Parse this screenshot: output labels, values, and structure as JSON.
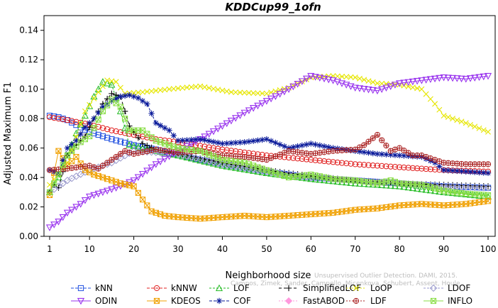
{
  "chart_data": {
    "type": "line",
    "title": "KDDCup99_1ofn",
    "xlabel": "Neighborhood size",
    "ylabel": "Adjusted Maximum F1",
    "xlim": [
      1,
      100
    ],
    "ylim": [
      0,
      0.15
    ],
    "x_ticks": [
      "1",
      "10",
      "20",
      "30",
      "40",
      "50",
      "60",
      "70",
      "80",
      "90",
      "100"
    ],
    "y_ticks": [
      "0.00",
      "0.02",
      "0.04",
      "0.06",
      "0.08",
      "0.10",
      "0.12",
      "0.14"
    ],
    "watermark": [
      "Unsupervised Outlier Detection. DAMI, 2015.",
      "Campos, Zimek, Sander, Campello, Micenkova, Schubert, Assent, Houle"
    ],
    "series": [
      {
        "name": "kNN",
        "color": "#1f4fe0",
        "marker": "square",
        "dash": "4,2",
        "points": [
          [
            1,
            0.082
          ],
          [
            3,
            0.081
          ],
          [
            5,
            0.079
          ],
          [
            8,
            0.074
          ],
          [
            10,
            0.071
          ],
          [
            15,
            0.066
          ],
          [
            20,
            0.062
          ],
          [
            25,
            0.059
          ],
          [
            30,
            0.055
          ],
          [
            40,
            0.049
          ],
          [
            50,
            0.044
          ],
          [
            60,
            0.04
          ],
          [
            70,
            0.038
          ],
          [
            80,
            0.036
          ],
          [
            90,
            0.034
          ],
          [
            100,
            0.033
          ]
        ]
      },
      {
        "name": "kNNW",
        "color": "#e02020",
        "marker": "circle",
        "dash": "4,2",
        "points": [
          [
            1,
            0.081
          ],
          [
            3,
            0.08
          ],
          [
            5,
            0.079
          ],
          [
            10,
            0.076
          ],
          [
            15,
            0.072
          ],
          [
            20,
            0.069
          ],
          [
            25,
            0.066
          ],
          [
            30,
            0.064
          ],
          [
            40,
            0.059
          ],
          [
            50,
            0.055
          ],
          [
            60,
            0.052
          ],
          [
            70,
            0.049
          ],
          [
            80,
            0.047
          ],
          [
            90,
            0.045
          ],
          [
            100,
            0.044
          ]
        ]
      },
      {
        "name": "LOF",
        "color": "#22bb22",
        "marker": "triangle-up",
        "dash": "3,2",
        "points": [
          [
            1,
            0.03
          ],
          [
            3,
            0.04
          ],
          [
            5,
            0.055
          ],
          [
            7,
            0.07
          ],
          [
            9,
            0.082
          ],
          [
            11,
            0.095
          ],
          [
            13,
            0.105
          ],
          [
            15,
            0.103
          ],
          [
            17,
            0.085
          ],
          [
            19,
            0.062
          ],
          [
            22,
            0.06
          ],
          [
            25,
            0.058
          ],
          [
            30,
            0.055
          ],
          [
            40,
            0.048
          ],
          [
            50,
            0.043
          ],
          [
            60,
            0.039
          ],
          [
            70,
            0.036
          ],
          [
            80,
            0.034
          ],
          [
            90,
            0.03
          ],
          [
            100,
            0.027
          ]
        ]
      },
      {
        "name": "SimplifiedLOF",
        "color": "#000000",
        "marker": "plus",
        "dash": "4,3",
        "points": [
          [
            1,
            0.03
          ],
          [
            2,
            0.035
          ],
          [
            3,
            0.033
          ],
          [
            5,
            0.055
          ],
          [
            7,
            0.062
          ],
          [
            9,
            0.068
          ],
          [
            11,
            0.08
          ],
          [
            13,
            0.09
          ],
          [
            15,
            0.097
          ],
          [
            17,
            0.095
          ],
          [
            19,
            0.075
          ],
          [
            22,
            0.063
          ],
          [
            25,
            0.059
          ],
          [
            30,
            0.056
          ],
          [
            40,
            0.05
          ],
          [
            50,
            0.045
          ],
          [
            60,
            0.041
          ],
          [
            70,
            0.038
          ],
          [
            80,
            0.036
          ],
          [
            90,
            0.035
          ],
          [
            100,
            0.034
          ]
        ]
      },
      {
        "name": "LoOP",
        "color": "#e6e600",
        "marker": "x",
        "dash": "2,2",
        "points": [
          [
            1,
            0.035
          ],
          [
            5,
            0.05
          ],
          [
            9,
            0.085
          ],
          [
            12,
            0.098
          ],
          [
            14,
            0.106
          ],
          [
            16,
            0.105
          ],
          [
            18,
            0.097
          ],
          [
            22,
            0.098
          ],
          [
            28,
            0.1
          ],
          [
            35,
            0.102
          ],
          [
            42,
            0.098
          ],
          [
            50,
            0.097
          ],
          [
            55,
            0.101
          ],
          [
            60,
            0.108
          ],
          [
            65,
            0.109
          ],
          [
            70,
            0.108
          ],
          [
            75,
            0.104
          ],
          [
            80,
            0.103
          ],
          [
            85,
            0.1
          ],
          [
            88,
            0.09
          ],
          [
            90,
            0.082
          ],
          [
            95,
            0.077
          ],
          [
            100,
            0.071
          ]
        ]
      },
      {
        "name": "LDOF",
        "color": "#9999cc",
        "marker": "diamond",
        "dash": "3,2",
        "points": [
          [
            1,
            0.03
          ],
          [
            5,
            0.038
          ],
          [
            10,
            0.045
          ],
          [
            15,
            0.05
          ],
          [
            20,
            0.058
          ],
          [
            30,
            0.056
          ],
          [
            40,
            0.049
          ],
          [
            50,
            0.044
          ],
          [
            60,
            0.04
          ],
          [
            70,
            0.038
          ],
          [
            80,
            0.036
          ],
          [
            90,
            0.034
          ],
          [
            100,
            0.033
          ]
        ]
      },
      {
        "name": "ODIN",
        "color": "#9933ee",
        "marker": "triangle-down",
        "dash": "",
        "points": [
          [
            1,
            0.006
          ],
          [
            3,
            0.01
          ],
          [
            5,
            0.016
          ],
          [
            8,
            0.022
          ],
          [
            10,
            0.027
          ],
          [
            13,
            0.03
          ],
          [
            16,
            0.033
          ],
          [
            20,
            0.038
          ],
          [
            25,
            0.049
          ],
          [
            30,
            0.058
          ],
          [
            35,
            0.066
          ],
          [
            40,
            0.075
          ],
          [
            45,
            0.084
          ],
          [
            50,
            0.092
          ],
          [
            55,
            0.1
          ],
          [
            60,
            0.109
          ],
          [
            65,
            0.106
          ],
          [
            70,
            0.101
          ],
          [
            75,
            0.099
          ],
          [
            80,
            0.104
          ],
          [
            85,
            0.106
          ],
          [
            90,
            0.108
          ],
          [
            95,
            0.107
          ],
          [
            100,
            0.109
          ]
        ]
      },
      {
        "name": "KDEOS",
        "color": "#f0a000",
        "marker": "square-x",
        "dash": "",
        "points": [
          [
            1,
            0.028
          ],
          [
            3,
            0.058
          ],
          [
            5,
            0.048
          ],
          [
            7,
            0.054
          ],
          [
            9,
            0.045
          ],
          [
            11,
            0.042
          ],
          [
            14,
            0.039
          ],
          [
            17,
            0.036
          ],
          [
            20,
            0.034
          ],
          [
            22,
            0.025
          ],
          [
            24,
            0.017
          ],
          [
            27,
            0.014
          ],
          [
            30,
            0.013
          ],
          [
            35,
            0.012
          ],
          [
            40,
            0.013
          ],
          [
            45,
            0.014
          ],
          [
            50,
            0.013
          ],
          [
            55,
            0.014
          ],
          [
            60,
            0.015
          ],
          [
            65,
            0.016
          ],
          [
            70,
            0.018
          ],
          [
            75,
            0.019
          ],
          [
            80,
            0.021
          ],
          [
            85,
            0.022
          ],
          [
            90,
            0.021
          ],
          [
            95,
            0.022
          ],
          [
            100,
            0.024
          ]
        ]
      },
      {
        "name": "COF",
        "color": "#0a1a9a",
        "marker": "star",
        "dash": "4,2",
        "points": [
          [
            1,
            0.045
          ],
          [
            3,
            0.043
          ],
          [
            5,
            0.06
          ],
          [
            7,
            0.065
          ],
          [
            9,
            0.074
          ],
          [
            11,
            0.08
          ],
          [
            13,
            0.088
          ],
          [
            15,
            0.092
          ],
          [
            17,
            0.095
          ],
          [
            19,
            0.096
          ],
          [
            21,
            0.094
          ],
          [
            23,
            0.09
          ],
          [
            25,
            0.077
          ],
          [
            28,
            0.072
          ],
          [
            30,
            0.065
          ],
          [
            35,
            0.066
          ],
          [
            40,
            0.063
          ],
          [
            45,
            0.064
          ],
          [
            50,
            0.066
          ],
          [
            55,
            0.06
          ],
          [
            60,
            0.063
          ],
          [
            65,
            0.06
          ],
          [
            70,
            0.058
          ],
          [
            75,
            0.056
          ],
          [
            80,
            0.055
          ],
          [
            85,
            0.054
          ],
          [
            88,
            0.05
          ],
          [
            90,
            0.045
          ],
          [
            95,
            0.044
          ],
          [
            100,
            0.043
          ]
        ]
      },
      {
        "name": "FastABOD",
        "color": "#ff99dd",
        "marker": "diamond-filled",
        "dash": "2,2",
        "points": []
      },
      {
        "name": "LDF",
        "color": "#aa2222",
        "marker": "circle-plus",
        "dash": "2,2",
        "points": [
          [
            1,
            0.045
          ],
          [
            5,
            0.046
          ],
          [
            10,
            0.048
          ],
          [
            12,
            0.046
          ],
          [
            15,
            0.052
          ],
          [
            18,
            0.058
          ],
          [
            20,
            0.056
          ],
          [
            25,
            0.059
          ],
          [
            30,
            0.057
          ],
          [
            35,
            0.058
          ],
          [
            40,
            0.055
          ],
          [
            45,
            0.054
          ],
          [
            50,
            0.052
          ],
          [
            55,
            0.058
          ],
          [
            60,
            0.056
          ],
          [
            65,
            0.058
          ],
          [
            70,
            0.059
          ],
          [
            72,
            0.062
          ],
          [
            75,
            0.069
          ],
          [
            78,
            0.058
          ],
          [
            80,
            0.06
          ],
          [
            83,
            0.055
          ],
          [
            85,
            0.055
          ],
          [
            88,
            0.052
          ],
          [
            90,
            0.05
          ],
          [
            95,
            0.049
          ],
          [
            100,
            0.049
          ]
        ]
      },
      {
        "name": "INFLO",
        "color": "#88dd44",
        "marker": "square-x",
        "dash": "",
        "points": [
          [
            1,
            0.03
          ],
          [
            3,
            0.042
          ],
          [
            5,
            0.055
          ],
          [
            8,
            0.064
          ],
          [
            10,
            0.068
          ],
          [
            13,
            0.085
          ],
          [
            15,
            0.093
          ],
          [
            17,
            0.088
          ],
          [
            19,
            0.072
          ],
          [
            22,
            0.072
          ],
          [
            25,
            0.065
          ],
          [
            28,
            0.062
          ],
          [
            30,
            0.06
          ],
          [
            35,
            0.058
          ],
          [
            40,
            0.052
          ],
          [
            45,
            0.05
          ],
          [
            50,
            0.045
          ],
          [
            55,
            0.04
          ],
          [
            60,
            0.042
          ],
          [
            65,
            0.039
          ],
          [
            70,
            0.038
          ],
          [
            75,
            0.036
          ],
          [
            78,
            0.038
          ],
          [
            80,
            0.036
          ],
          [
            85,
            0.035
          ],
          [
            90,
            0.031
          ],
          [
            95,
            0.029
          ],
          [
            100,
            0.028
          ]
        ]
      }
    ]
  }
}
